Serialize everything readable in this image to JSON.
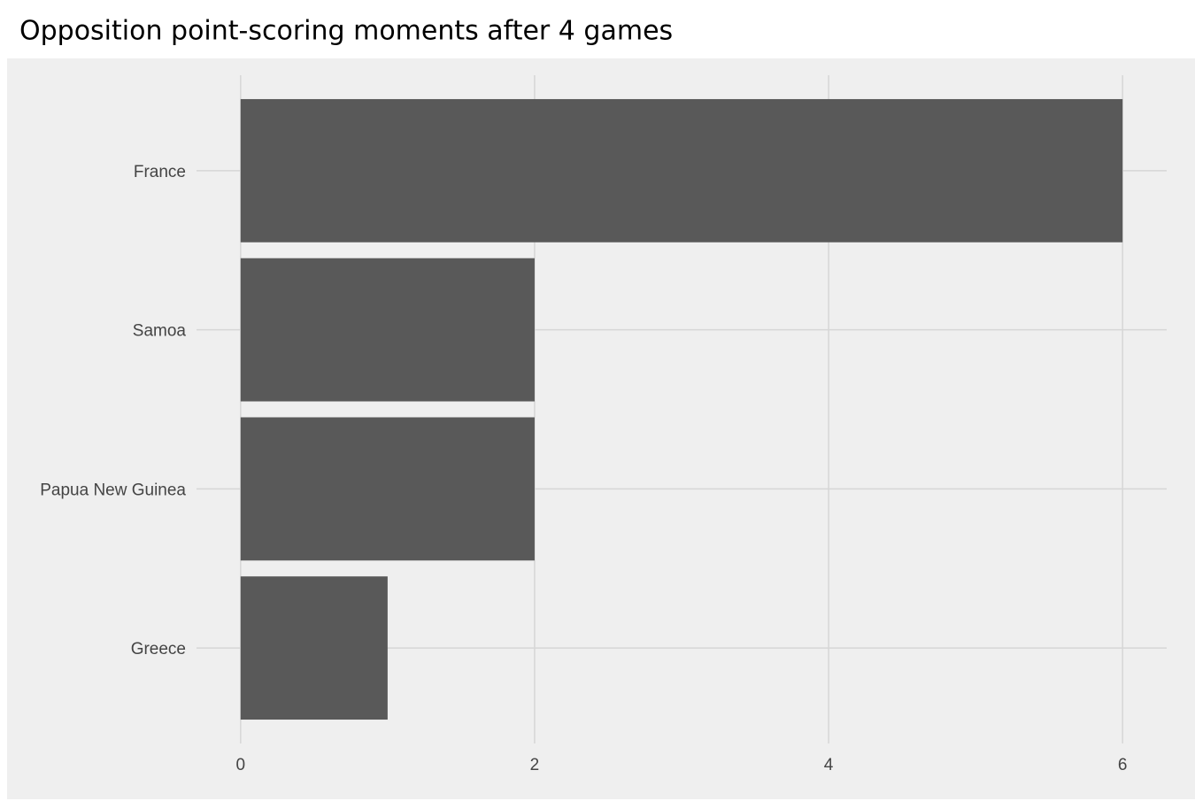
{
  "chart_data": {
    "type": "bar",
    "orientation": "horizontal",
    "title": "Opposition point-scoring moments after 4 games",
    "categories": [
      "France",
      "Samoa",
      "Papua New Guinea",
      "Greece"
    ],
    "values": [
      6,
      2,
      2,
      1
    ],
    "color": "#595959",
    "xlim": [
      -0.3,
      6.3
    ],
    "xticks": [
      0,
      2,
      4,
      6
    ],
    "grid": true
  }
}
